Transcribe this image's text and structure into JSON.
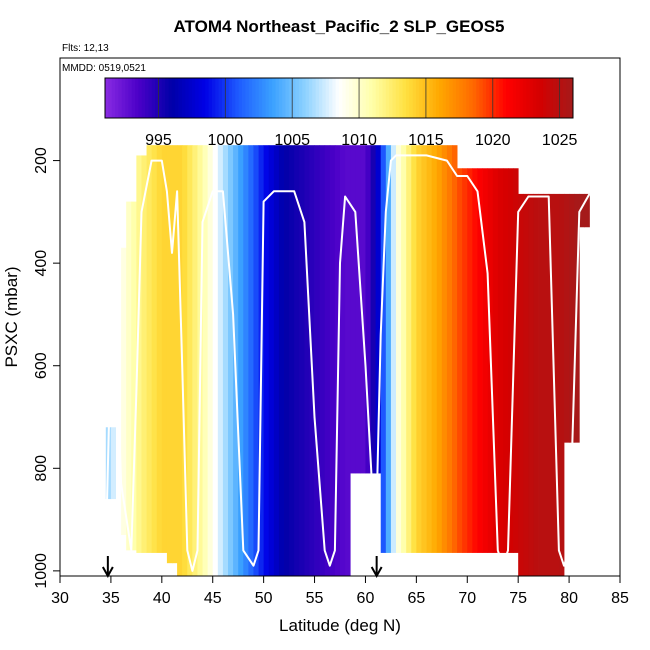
{
  "chart_data": {
    "type": "heatmap",
    "title": "ATOM4 Northeast_Pacific_2 SLP_GEOS5",
    "flights_label": "Flts: 12,13",
    "dates_label": "MMDD: 0519,0521",
    "xlabel": "Latitude (deg N)",
    "ylabel": "PSXC (mbar)",
    "xlim": [
      30,
      85
    ],
    "ylim": [
      1010,
      0
    ],
    "x_ticks": [
      30,
      35,
      40,
      45,
      50,
      55,
      60,
      65,
      70,
      75,
      80,
      85
    ],
    "y_ticks": [
      200,
      400,
      600,
      800,
      1000
    ],
    "colorbar": {
      "range": [
        991,
        1026
      ],
      "ticks": [
        995,
        1000,
        1005,
        1010,
        1015,
        1020,
        1025
      ],
      "colors": [
        "#8a2be2",
        "#4b00c8",
        "#0000a8",
        "#0000e6",
        "#1e5cff",
        "#3aa0ff",
        "#8ed2ff",
        "#ffffff",
        "#ffffa8",
        "#ffe040",
        "#ffa800",
        "#ff6a00",
        "#ff0000",
        "#d40000",
        "#a51a1a"
      ]
    },
    "slp_profile": {
      "lat": [
        34.5,
        36,
        38,
        40,
        42,
        44,
        46,
        48,
        50,
        52,
        54,
        56,
        58,
        60,
        61,
        63,
        65,
        67,
        69,
        71,
        73,
        75,
        77,
        79,
        81,
        82
      ],
      "slp": [
        1006,
        1009,
        1012,
        1014,
        1014,
        1011,
        1007,
        1003,
        999,
        996,
        995,
        994,
        993,
        993,
        996,
        1009,
        1014,
        1016,
        1019,
        1021,
        1023,
        1024,
        1025,
        1025,
        1026,
        1026
      ]
    },
    "columns": [
      {
        "lat_start": 34.5,
        "lat_end": 35.5,
        "top": 720,
        "bottom": 860
      },
      {
        "lat_start": 35.5,
        "lat_end": 36.5,
        "top": 370,
        "bottom": 930
      },
      {
        "lat_start": 36.5,
        "lat_end": 37.5,
        "top": 280,
        "bottom": 960
      },
      {
        "lat_start": 37.5,
        "lat_end": 38.5,
        "top": 190,
        "bottom": 965
      },
      {
        "lat_start": 38.5,
        "lat_end": 40.5,
        "top": 170,
        "bottom": 965
      },
      {
        "lat_start": 40.5,
        "lat_end": 41.5,
        "top": 170,
        "bottom": 985
      },
      {
        "lat_start": 41.5,
        "lat_end": 54.5,
        "top": 170,
        "bottom": 1010
      },
      {
        "lat_start": 54.5,
        "lat_end": 58.5,
        "top": 170,
        "bottom": 1010
      },
      {
        "lat_start": 58.5,
        "lat_end": 61.5,
        "top": 170,
        "bottom": 810
      },
      {
        "lat_start": 61.5,
        "lat_end": 69,
        "top": 170,
        "bottom": 965
      },
      {
        "lat_start": 69,
        "lat_end": 75,
        "top": 215,
        "bottom": 965
      },
      {
        "lat_start": 75,
        "lat_end": 79.5,
        "top": 265,
        "bottom": 1010
      },
      {
        "lat_start": 79.5,
        "lat_end": 81,
        "top": 265,
        "bottom": 750
      },
      {
        "lat_start": 81,
        "lat_end": 82,
        "top": 265,
        "bottom": 330
      }
    ],
    "flight_track": {
      "lat": [
        34.5,
        35,
        35.5,
        36,
        37,
        37.5,
        38,
        39,
        40,
        40.5,
        41,
        41.5,
        42,
        42.5,
        43,
        43.5,
        44,
        45,
        46,
        47,
        48,
        49,
        49.5,
        50,
        51,
        52,
        53,
        54,
        55,
        56,
        56.5,
        57,
        57.5,
        58,
        59,
        60,
        61,
        61.5,
        62,
        62.5,
        63,
        64,
        65,
        66,
        67,
        68,
        69,
        70,
        71,
        72,
        73,
        73.5,
        74,
        75,
        76,
        77,
        78,
        79,
        79.5,
        80,
        81,
        82
      ],
      "p": [
        960,
        560,
        540,
        830,
        960,
        650,
        300,
        200,
        200,
        260,
        380,
        260,
        600,
        960,
        1000,
        960,
        320,
        260,
        260,
        500,
        960,
        990,
        960,
        280,
        260,
        260,
        260,
        320,
        700,
        960,
        990,
        960,
        400,
        270,
        300,
        600,
        960,
        540,
        300,
        200,
        190,
        190,
        190,
        190,
        195,
        200,
        230,
        230,
        260,
        420,
        960,
        990,
        960,
        300,
        270,
        270,
        270,
        960,
        990,
        960,
        300,
        265
      ]
    },
    "markers": [
      {
        "lat": 34.7
      },
      {
        "lat": 61.1
      }
    ]
  }
}
